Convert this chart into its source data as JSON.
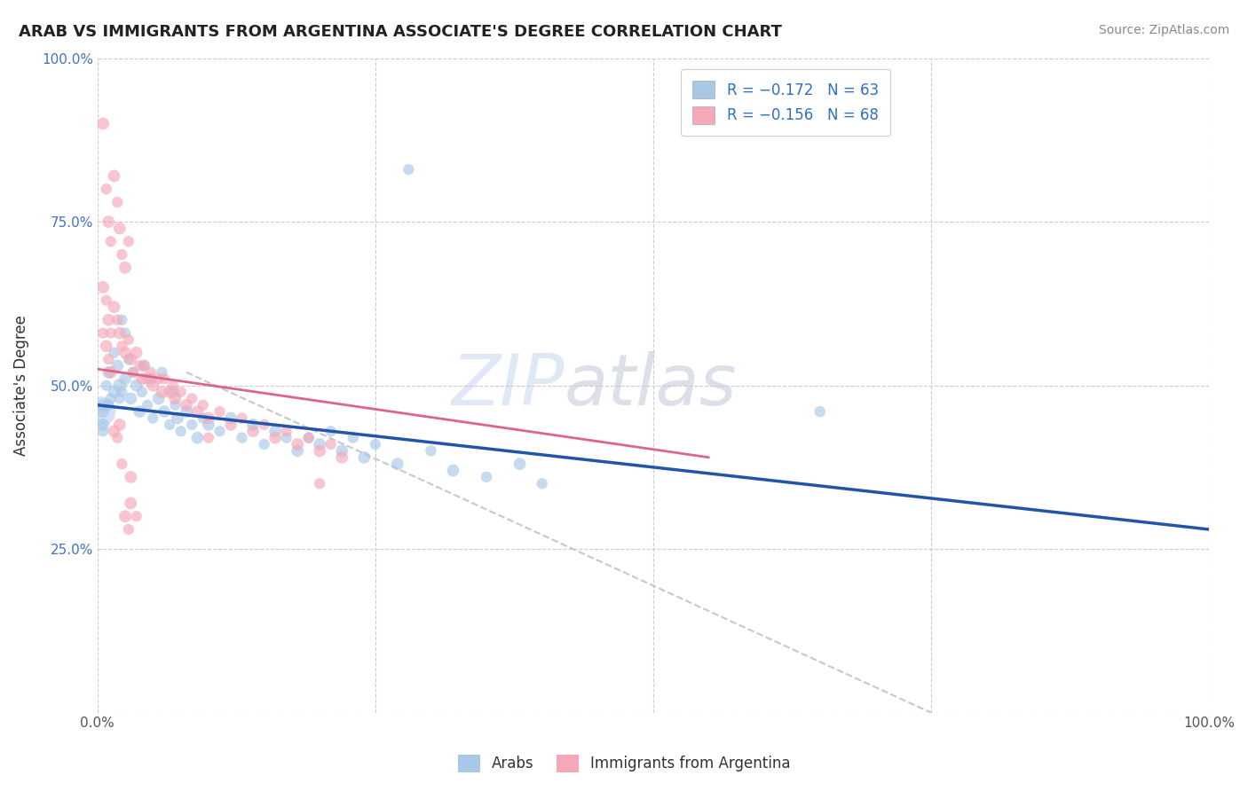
{
  "title": "ARAB VS IMMIGRANTS FROM ARGENTINA ASSOCIATE'S DEGREE CORRELATION CHART",
  "source_text": "Source: ZipAtlas.com",
  "ylabel": "Associate's Degree",
  "xlabel": "",
  "xlim": [
    0,
    1.0
  ],
  "ylim": [
    0,
    1.0
  ],
  "x_ticks": [
    0.0,
    0.25,
    0.5,
    0.75,
    1.0
  ],
  "y_ticks": [
    0.0,
    0.25,
    0.5,
    0.75,
    1.0
  ],
  "x_tick_labels": [
    "0.0%",
    "",
    "",
    "",
    "100.0%"
  ],
  "y_tick_labels": [
    "",
    "25.0%",
    "50.0%",
    "75.0%",
    "100.0%"
  ],
  "color_blue": "#a8c8e8",
  "color_pink": "#f4a8b8",
  "color_blue_line": "#2255aa",
  "color_pink_line": "#dd6688",
  "color_gray_line": "#bbbbbb",
  "watermark_zip": "ZIP",
  "watermark_atlas": "atlas",
  "blue_line_x0": 0.0,
  "blue_line_x1": 1.0,
  "blue_line_y0": 0.47,
  "blue_line_y1": 0.28,
  "pink_line_x0": 0.0,
  "pink_line_x1": 0.55,
  "pink_line_y0": 0.525,
  "pink_line_y1": 0.39,
  "gray_line_x0": 0.08,
  "gray_line_x1": 0.75,
  "gray_line_y0": 0.52,
  "gray_line_y1": 0.0,
  "arab_points": [
    [
      0.005,
      0.47
    ],
    [
      0.008,
      0.5
    ],
    [
      0.01,
      0.52
    ],
    [
      0.012,
      0.48
    ],
    [
      0.015,
      0.55
    ],
    [
      0.018,
      0.53
    ],
    [
      0.02,
      0.5
    ],
    [
      0.022,
      0.49
    ],
    [
      0.025,
      0.51
    ],
    [
      0.028,
      0.54
    ],
    [
      0.03,
      0.48
    ],
    [
      0.032,
      0.52
    ],
    [
      0.035,
      0.5
    ],
    [
      0.038,
      0.46
    ],
    [
      0.04,
      0.49
    ],
    [
      0.042,
      0.53
    ],
    [
      0.045,
      0.47
    ],
    [
      0.048,
      0.51
    ],
    [
      0.05,
      0.45
    ],
    [
      0.055,
      0.48
    ],
    [
      0.058,
      0.52
    ],
    [
      0.06,
      0.46
    ],
    [
      0.065,
      0.44
    ],
    [
      0.068,
      0.49
    ],
    [
      0.07,
      0.47
    ],
    [
      0.072,
      0.45
    ],
    [
      0.075,
      0.43
    ],
    [
      0.08,
      0.46
    ],
    [
      0.085,
      0.44
    ],
    [
      0.09,
      0.42
    ],
    [
      0.095,
      0.45
    ],
    [
      0.1,
      0.44
    ],
    [
      0.11,
      0.43
    ],
    [
      0.12,
      0.45
    ],
    [
      0.13,
      0.42
    ],
    [
      0.14,
      0.44
    ],
    [
      0.15,
      0.41
    ],
    [
      0.16,
      0.43
    ],
    [
      0.17,
      0.42
    ],
    [
      0.18,
      0.4
    ],
    [
      0.19,
      0.42
    ],
    [
      0.2,
      0.41
    ],
    [
      0.21,
      0.43
    ],
    [
      0.22,
      0.4
    ],
    [
      0.23,
      0.42
    ],
    [
      0.24,
      0.39
    ],
    [
      0.25,
      0.41
    ],
    [
      0.27,
      0.38
    ],
    [
      0.3,
      0.4
    ],
    [
      0.32,
      0.37
    ],
    [
      0.35,
      0.36
    ],
    [
      0.38,
      0.38
    ],
    [
      0.4,
      0.35
    ],
    [
      0.28,
      0.83
    ],
    [
      0.005,
      0.46
    ],
    [
      0.01,
      0.47
    ],
    [
      0.015,
      0.49
    ],
    [
      0.02,
      0.48
    ],
    [
      0.65,
      0.46
    ],
    [
      0.005,
      0.44
    ],
    [
      0.005,
      0.43
    ],
    [
      0.025,
      0.58
    ],
    [
      0.022,
      0.6
    ]
  ],
  "arab_sizes": [
    25,
    20,
    25,
    20,
    20,
    25,
    30,
    20,
    25,
    20,
    25,
    20,
    25,
    25,
    20,
    25,
    20,
    25,
    20,
    25,
    20,
    25,
    20,
    25,
    20,
    25,
    20,
    25,
    20,
    25,
    20,
    25,
    20,
    25,
    20,
    25,
    20,
    25,
    20,
    25,
    20,
    25,
    20,
    25,
    20,
    25,
    20,
    25,
    20,
    25,
    20,
    25,
    20,
    20,
    25,
    20,
    25,
    20,
    20,
    25,
    20,
    20,
    20
  ],
  "arg_points": [
    [
      0.005,
      0.9
    ],
    [
      0.008,
      0.8
    ],
    [
      0.01,
      0.75
    ],
    [
      0.012,
      0.72
    ],
    [
      0.015,
      0.82
    ],
    [
      0.018,
      0.78
    ],
    [
      0.02,
      0.74
    ],
    [
      0.022,
      0.7
    ],
    [
      0.025,
      0.68
    ],
    [
      0.028,
      0.72
    ],
    [
      0.005,
      0.65
    ],
    [
      0.008,
      0.63
    ],
    [
      0.01,
      0.6
    ],
    [
      0.012,
      0.58
    ],
    [
      0.015,
      0.62
    ],
    [
      0.018,
      0.6
    ],
    [
      0.02,
      0.58
    ],
    [
      0.022,
      0.56
    ],
    [
      0.025,
      0.55
    ],
    [
      0.028,
      0.57
    ],
    [
      0.03,
      0.54
    ],
    [
      0.032,
      0.52
    ],
    [
      0.035,
      0.55
    ],
    [
      0.038,
      0.53
    ],
    [
      0.04,
      0.51
    ],
    [
      0.042,
      0.53
    ],
    [
      0.045,
      0.51
    ],
    [
      0.048,
      0.52
    ],
    [
      0.05,
      0.5
    ],
    [
      0.055,
      0.51
    ],
    [
      0.058,
      0.49
    ],
    [
      0.06,
      0.51
    ],
    [
      0.065,
      0.49
    ],
    [
      0.068,
      0.5
    ],
    [
      0.07,
      0.48
    ],
    [
      0.075,
      0.49
    ],
    [
      0.08,
      0.47
    ],
    [
      0.085,
      0.48
    ],
    [
      0.09,
      0.46
    ],
    [
      0.095,
      0.47
    ],
    [
      0.1,
      0.45
    ],
    [
      0.11,
      0.46
    ],
    [
      0.12,
      0.44
    ],
    [
      0.13,
      0.45
    ],
    [
      0.14,
      0.43
    ],
    [
      0.15,
      0.44
    ],
    [
      0.16,
      0.42
    ],
    [
      0.17,
      0.43
    ],
    [
      0.18,
      0.41
    ],
    [
      0.19,
      0.42
    ],
    [
      0.2,
      0.4
    ],
    [
      0.21,
      0.41
    ],
    [
      0.22,
      0.39
    ],
    [
      0.005,
      0.58
    ],
    [
      0.008,
      0.56
    ],
    [
      0.01,
      0.54
    ],
    [
      0.012,
      0.52
    ],
    [
      0.1,
      0.42
    ],
    [
      0.015,
      0.43
    ],
    [
      0.018,
      0.42
    ],
    [
      0.02,
      0.44
    ],
    [
      0.022,
      0.38
    ],
    [
      0.03,
      0.36
    ],
    [
      0.2,
      0.35
    ],
    [
      0.025,
      0.3
    ],
    [
      0.028,
      0.28
    ],
    [
      0.03,
      0.32
    ],
    [
      0.035,
      0.3
    ]
  ],
  "arg_sizes": [
    25,
    20,
    25,
    20,
    25,
    20,
    25,
    20,
    25,
    20,
    25,
    20,
    25,
    20,
    25,
    20,
    25,
    20,
    25,
    20,
    25,
    20,
    25,
    20,
    25,
    20,
    25,
    20,
    25,
    20,
    25,
    20,
    25,
    20,
    25,
    20,
    25,
    20,
    25,
    20,
    25,
    20,
    25,
    20,
    25,
    20,
    25,
    20,
    25,
    20,
    25,
    20,
    25,
    20,
    25,
    20,
    25,
    20,
    25,
    20,
    25,
    20,
    25,
    20,
    25,
    20,
    25,
    20
  ]
}
